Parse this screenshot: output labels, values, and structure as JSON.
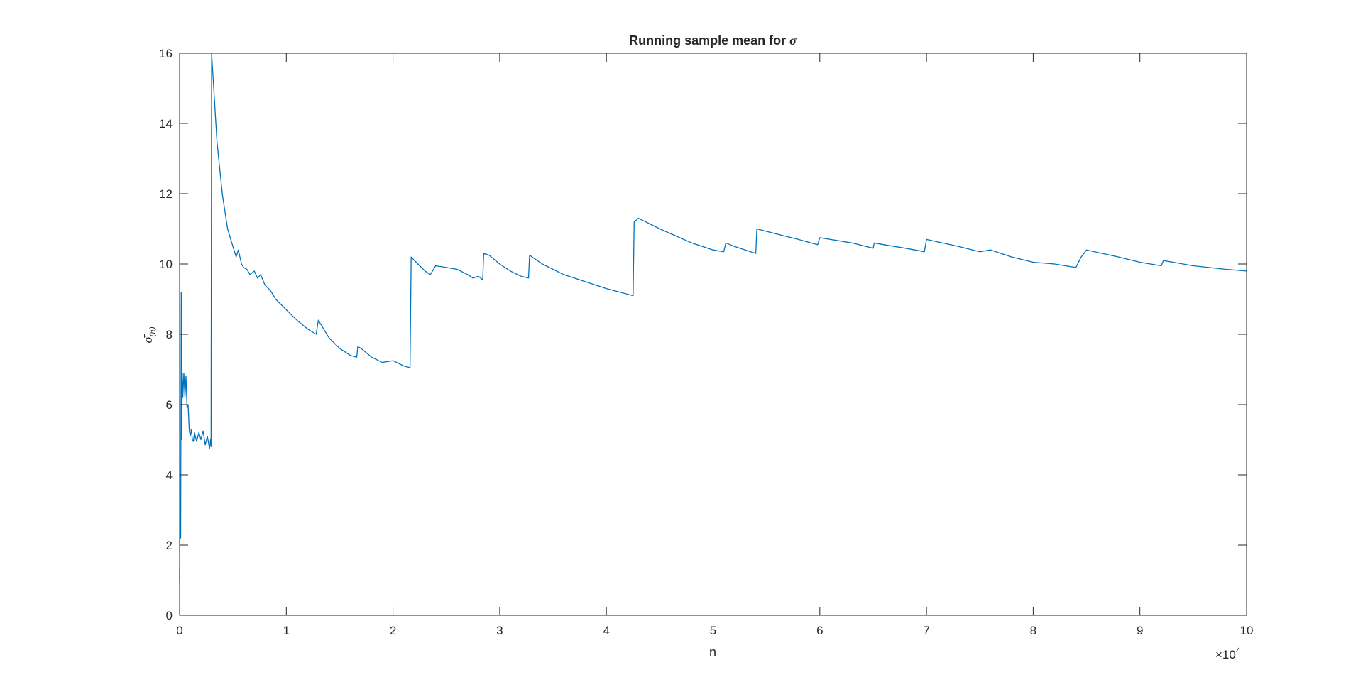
{
  "chart_data": {
    "type": "line",
    "title_text": "Running sample mean for ",
    "title_symbol": "σ",
    "xlabel": "n",
    "ylabel_symbol": "σ̄",
    "ylabel_subscript": "(n)",
    "x_multiplier_text": "×10",
    "x_multiplier_exponent": "4",
    "xlim": [
      0,
      100000
    ],
    "ylim": [
      0,
      16
    ],
    "xticks": [
      0,
      10000,
      20000,
      30000,
      40000,
      50000,
      60000,
      70000,
      80000,
      90000,
      100000
    ],
    "xtick_labels": [
      "0",
      "1",
      "2",
      "3",
      "4",
      "5",
      "6",
      "7",
      "8",
      "9",
      "10"
    ],
    "yticks": [
      0,
      2,
      4,
      6,
      8,
      10,
      12,
      14,
      16
    ],
    "ytick_labels": [
      "0",
      "2",
      "4",
      "6",
      "8",
      "10",
      "12",
      "14",
      "16"
    ],
    "grid": false,
    "line_color": "#0072BD",
    "series": [
      {
        "x": [
          0,
          50,
          100,
          150,
          200,
          250,
          300,
          400,
          500,
          600,
          700,
          800,
          900,
          1000,
          1100,
          1200,
          1300,
          1400,
          1600,
          1800,
          2000,
          2200,
          2400,
          2600,
          2800,
          2900,
          2950,
          3000,
          3200,
          3500,
          4000,
          4500,
          5000,
          5300,
          5500,
          5800,
          6000,
          6300,
          6600,
          7000,
          7300,
          7600,
          8000,
          8500,
          9000,
          9500,
          10000,
          11000,
          12000,
          12800,
          13000,
          14000,
          15000,
          16000,
          16600,
          16700,
          17000,
          18000,
          19000,
          20000,
          21000,
          21600,
          21700,
          22000,
          23000,
          23500,
          24000,
          25000,
          26000,
          27000,
          27500,
          28000,
          28400,
          28500,
          29000,
          30000,
          31000,
          32000,
          32700,
          32800,
          34000,
          36000,
          38000,
          40000,
          42500,
          42600,
          43000,
          45000,
          46500,
          48000,
          50000,
          51000,
          51200,
          52000,
          54000,
          54100,
          56000,
          58000,
          59800,
          60000,
          63000,
          65000,
          65100,
          66000,
          68000,
          69800,
          70000,
          73000,
          75000,
          76000,
          78000,
          80000,
          82000,
          84000,
          84500,
          85000,
          88000,
          90000,
          92000,
          92200,
          95000,
          98000,
          100000
        ],
        "y": [
          1.0,
          3.5,
          2.2,
          9.2,
          5.0,
          6.9,
          6.2,
          6.9,
          6.2,
          6.8,
          5.9,
          6.0,
          5.3,
          5.1,
          5.3,
          5.0,
          4.95,
          5.2,
          4.95,
          5.2,
          5.0,
          5.25,
          4.85,
          5.1,
          4.75,
          5.0,
          4.8,
          16.0,
          15.0,
          13.5,
          12.0,
          11.0,
          10.5,
          10.2,
          10.4,
          10.0,
          9.9,
          9.85,
          9.7,
          9.8,
          9.6,
          9.7,
          9.4,
          9.25,
          9.0,
          8.85,
          8.7,
          8.4,
          8.15,
          8.0,
          8.4,
          7.9,
          7.6,
          7.4,
          7.35,
          7.65,
          7.6,
          7.35,
          7.2,
          7.25,
          7.1,
          7.05,
          10.2,
          10.1,
          9.8,
          9.7,
          9.95,
          9.9,
          9.85,
          9.7,
          9.6,
          9.65,
          9.55,
          10.3,
          10.25,
          10.0,
          9.8,
          9.65,
          9.6,
          10.25,
          10.0,
          9.7,
          9.5,
          9.3,
          9.1,
          11.2,
          11.3,
          11.0,
          10.8,
          10.6,
          10.4,
          10.35,
          10.6,
          10.5,
          10.3,
          11.0,
          10.85,
          10.7,
          10.55,
          10.75,
          10.6,
          10.45,
          10.6,
          10.55,
          10.45,
          10.35,
          10.7,
          10.5,
          10.35,
          10.4,
          10.2,
          10.05,
          10.0,
          9.9,
          10.2,
          10.4,
          10.2,
          10.05,
          9.95,
          10.1,
          9.95,
          9.85,
          9.8
        ]
      }
    ]
  }
}
